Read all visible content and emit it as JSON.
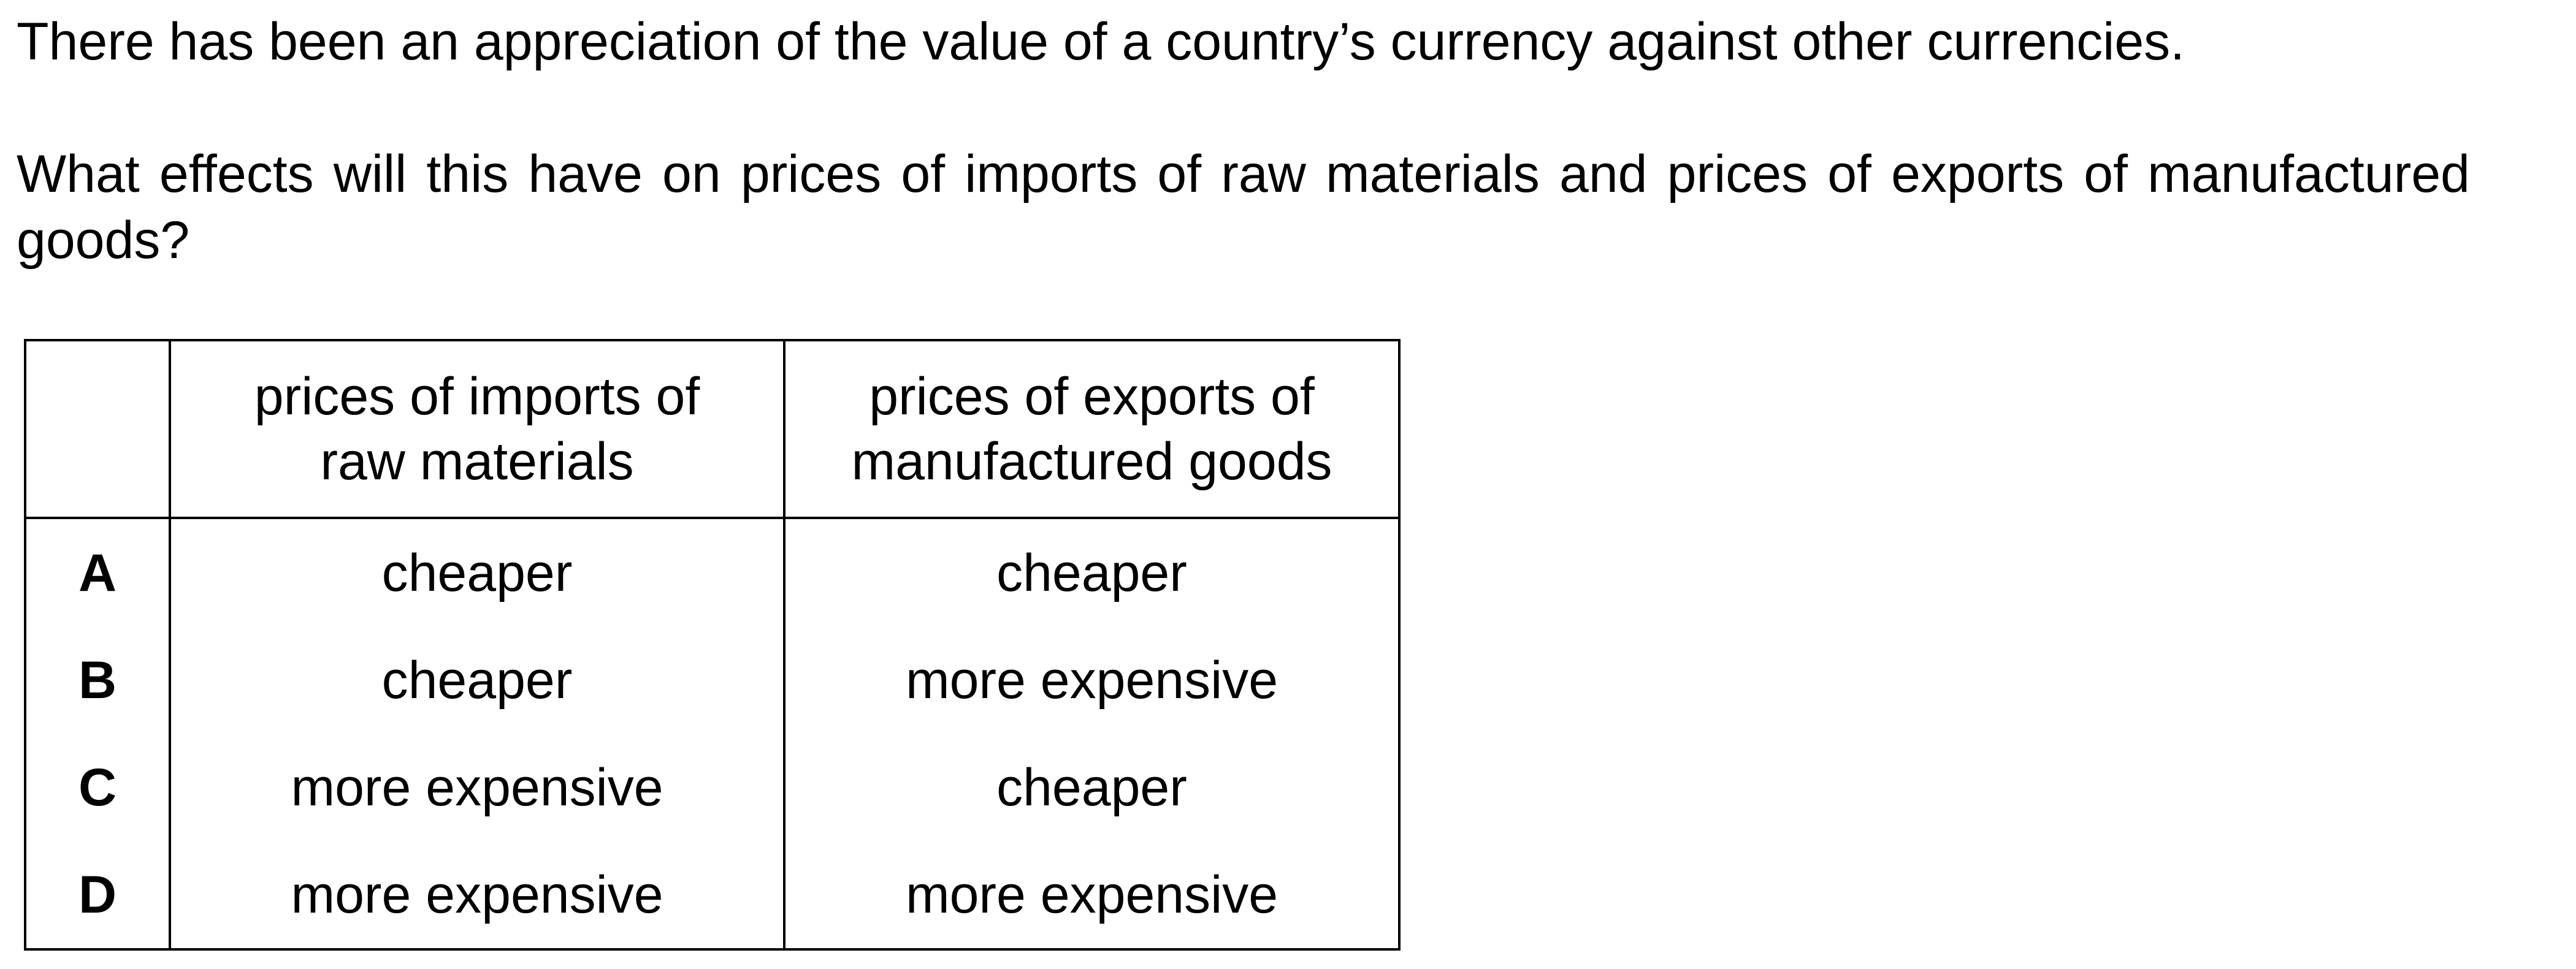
{
  "question": {
    "stem": "There has been an appreciation of the value of a country’s currency against other currencies.",
    "prompt": "What effects will this have on prices of imports of raw materials and prices of exports of manufactured goods?"
  },
  "table": {
    "headers": {
      "blank": "",
      "imports_line1": "prices of imports of",
      "imports_line2": "raw materials",
      "exports_line1": "prices of exports of",
      "exports_line2": "manufactured goods"
    },
    "rows": [
      {
        "letter": "A",
        "imports": "cheaper",
        "exports": "cheaper"
      },
      {
        "letter": "B",
        "imports": "cheaper",
        "exports": "more expensive"
      },
      {
        "letter": "C",
        "imports": "more expensive",
        "exports": "cheaper"
      },
      {
        "letter": "D",
        "imports": "more expensive",
        "exports": "more expensive"
      }
    ]
  }
}
